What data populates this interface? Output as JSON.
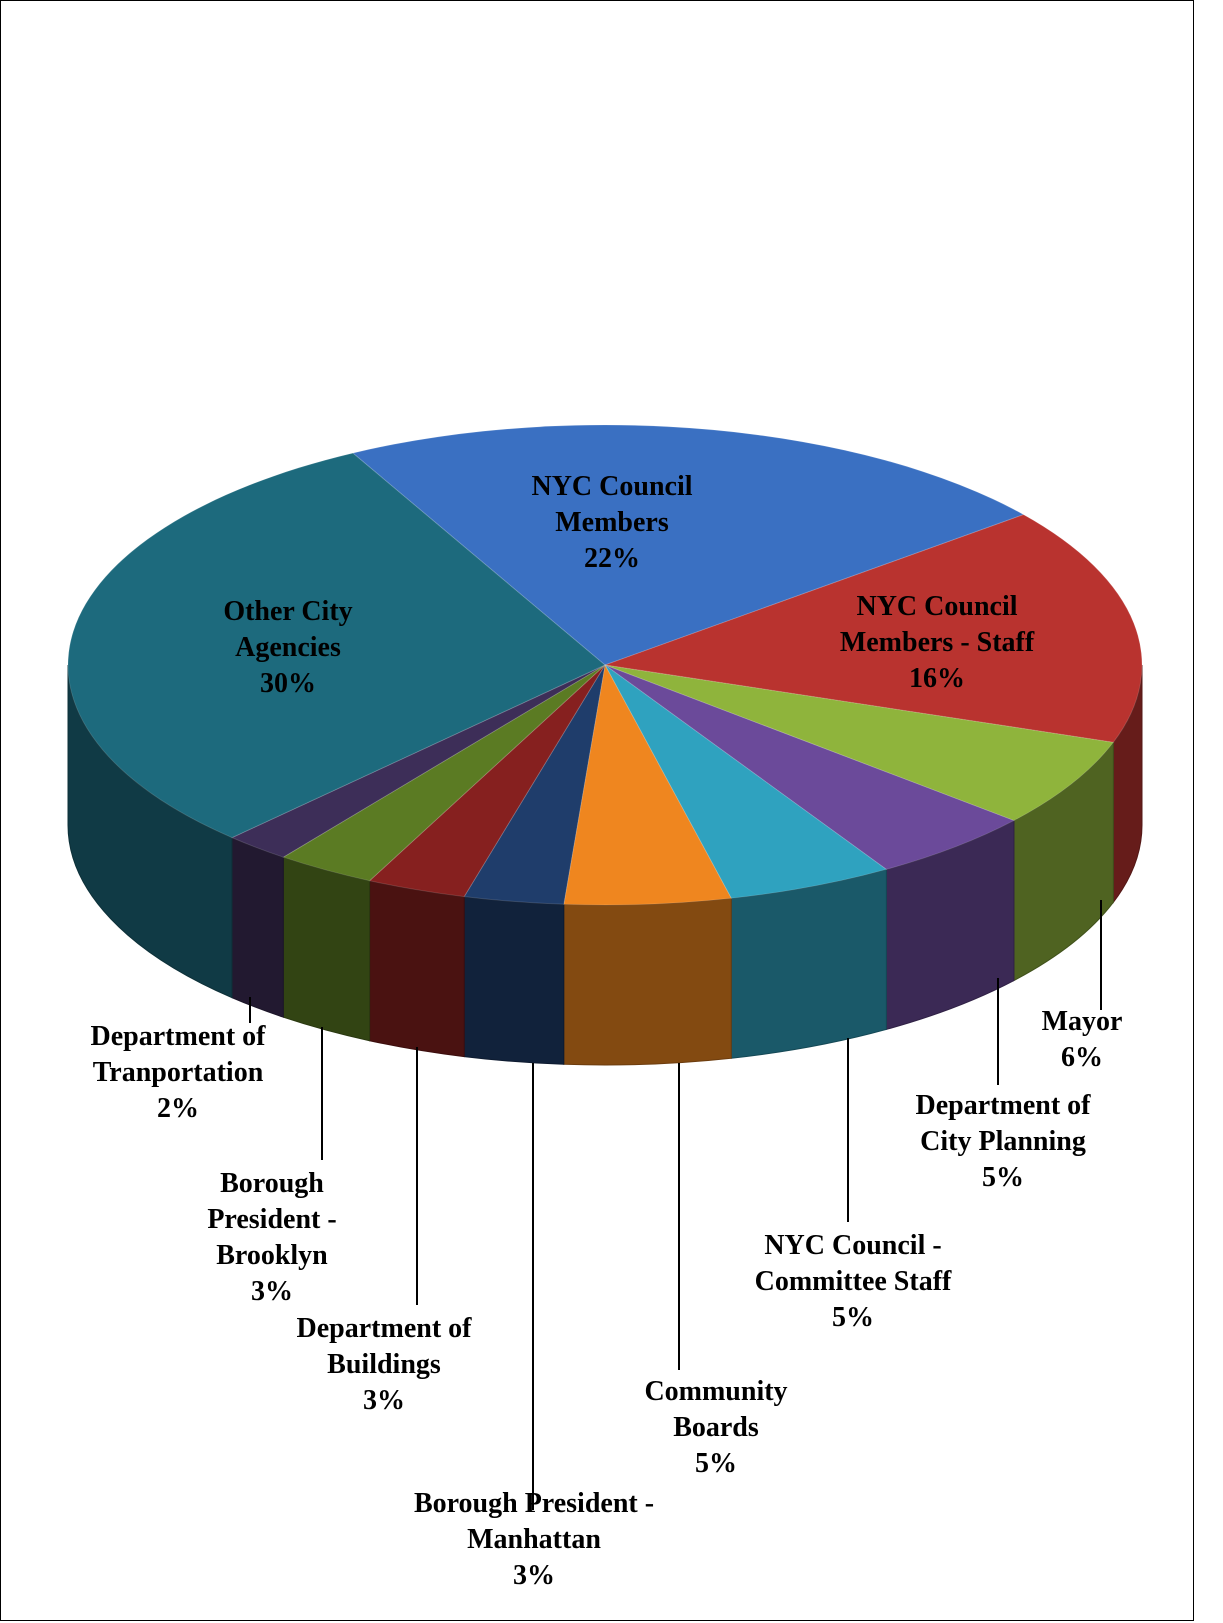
{
  "chart_data": {
    "type": "pie",
    "categories": [
      "NYC Council Members",
      "NYC Council Members - Staff",
      "Mayor",
      "Department of City Planning",
      "NYC Council - Committee Staff",
      "Community Boards",
      "Borough President - Manhattan",
      "Department of Buildings",
      "Borough President - Brooklyn",
      "Department of Tranportation",
      "Other City Agencies"
    ],
    "values": [
      22,
      16,
      6,
      5,
      5,
      5,
      3,
      3,
      3,
      2,
      30
    ],
    "value_labels": [
      "22%",
      "16%",
      "6%",
      "5%",
      "5%",
      "5%",
      "3%",
      "3%",
      "3%",
      "2%",
      "30%"
    ],
    "colors": [
      "#3a70c2",
      "#b9332f",
      "#8fb43c",
      "#6b4a9a",
      "#2fa2bf",
      "#ef861f",
      "#1f3d6b",
      "#86201f",
      "#5b7b23",
      "#3d2e58",
      "#1d6a7d"
    ]
  }
}
